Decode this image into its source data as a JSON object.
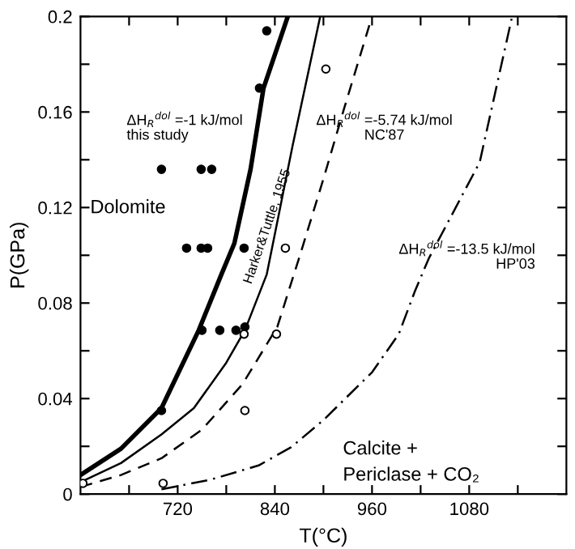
{
  "chart_data": {
    "type": "line",
    "xlabel": "T(°C)",
    "ylabel": "P(GPa)",
    "xlim": [
      600,
      1200
    ],
    "ylim": [
      0,
      0.2
    ],
    "xticks": [
      {
        "value": 660,
        "label": null
      },
      720,
      {
        "value": 780,
        "label": null
      },
      840,
      {
        "value": 900,
        "label": null
      },
      960,
      {
        "value": 1020,
        "label": null
      },
      1080,
      {
        "value": 1140,
        "label": null
      }
    ],
    "yticks": [
      0,
      {
        "value": 0.02,
        "label": null
      },
      0.04,
      {
        "value": 0.06,
        "label": null
      },
      0.08,
      {
        "value": 0.1,
        "label": null
      },
      0.12,
      {
        "value": 0.14,
        "label": null
      },
      0.16,
      {
        "value": 0.18,
        "label": null
      },
      0.2
    ],
    "grid": false,
    "legend": false,
    "series": [
      {
        "color": "#000000",
        "line_style": "solid",
        "marker": "none",
        "x": [
          600,
          650,
          700,
          746,
          774,
          790,
          810,
          826,
          856
        ],
        "values": [
          0.008,
          0.019,
          0.036,
          0.0686,
          0.092,
          0.105,
          0.136,
          0.17,
          0.2
        ]
      },
      {
        "color": "#000000",
        "line_style": "solid",
        "marker": "none",
        "x": [
          600,
          650,
          700,
          740,
          780,
          803,
          830,
          862,
          896
        ],
        "values": [
          0.005,
          0.013,
          0.025,
          0.036,
          0.055,
          0.0686,
          0.092,
          0.146,
          0.2
        ]
      },
      {
        "color": "#000000",
        "line_style": "dashed",
        "marker": "none",
        "x": [
          600,
          650,
          700,
          750,
          800,
          843,
          871,
          900,
          926,
          960
        ],
        "values": [
          0.003,
          0.008,
          0.015,
          0.027,
          0.046,
          0.07,
          0.1,
          0.132,
          0.162,
          0.2
        ]
      },
      {
        "color": "#000000",
        "line_style": "dashdot",
        "marker": "none",
        "x": [
          700,
          760,
          820,
          860,
          900,
          960,
          993,
          1013,
          1030,
          1093,
          1133
        ],
        "values": [
          0.002,
          0.006,
          0.012,
          0.0196,
          0.031,
          0.051,
          0.067,
          0.085,
          0.0986,
          0.139,
          0.2
        ]
      },
      {
        "type": "scatter",
        "color": "#000000",
        "marker": "circle",
        "x": [
          830,
          821,
          700,
          749,
          762,
          731,
          749,
          757,
          802,
          750,
          772,
          792,
          803,
          700
        ],
        "values": [
          0.194,
          0.17,
          0.136,
          0.136,
          0.136,
          0.103,
          0.103,
          0.103,
          0.103,
          0.0686,
          0.0686,
          0.0686,
          0.07,
          0.035
        ]
      },
      {
        "type": "scatter",
        "color": "#000000",
        "marker": "circle",
        "x": [
          853,
          903,
          802,
          842,
          803,
          702,
          603
        ],
        "values": [
          0.103,
          0.178,
          0.067,
          0.067,
          0.035,
          0.0045,
          0.0045
        ]
      }
    ],
    "annotations": [
      "ΔH$_{R}$$^{dol}$ =-1 kJ/mol\nthis study",
      "ΔH$_{R}$$^{dol}$ =-5.74 kJ/mol\nNC'87",
      "ΔH$_{R}$$^{dol}$ =-13.5 kJ/mol\nHP'03",
      "Harker&Tuttle, 1955",
      "Dolomite",
      "Calcite +\nPericlase + CO₂"
    ]
  }
}
